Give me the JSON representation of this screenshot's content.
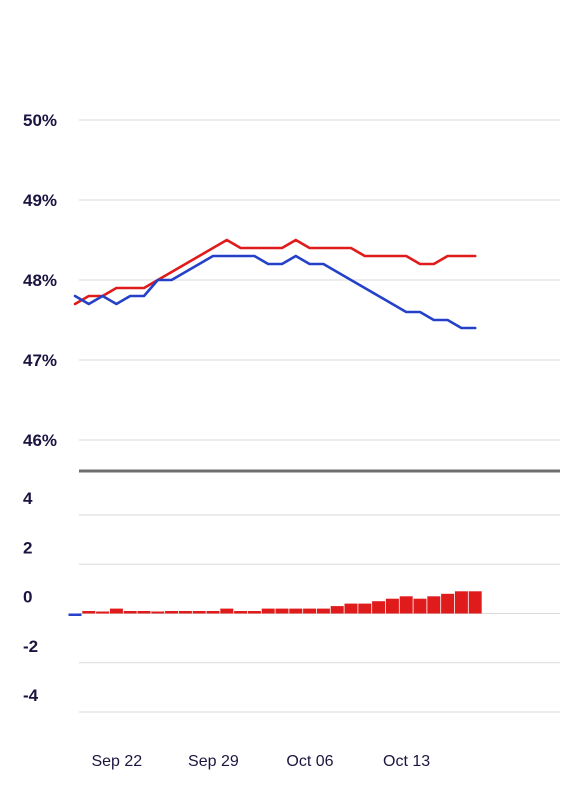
{
  "chart_data": [
    {
      "type": "line",
      "title": "",
      "xlabel": "",
      "ylabel": "",
      "ylim": [
        45.6,
        50
      ],
      "yticks": [
        "50%",
        "49%",
        "48%",
        "47%",
        "46%"
      ],
      "ytick_values": [
        50,
        49,
        48,
        47,
        46
      ],
      "x": [
        "Sep 21",
        "Sep 22",
        "Sep 23",
        "Sep 24",
        "Sep 25",
        "Sep 26",
        "Sep 27",
        "Sep 28",
        "Sep 29",
        "Sep 30",
        "Oct 01",
        "Oct 02",
        "Oct 03",
        "Oct 04",
        "Oct 05",
        "Oct 06",
        "Oct 07",
        "Oct 08",
        "Oct 09",
        "Oct 10",
        "Oct 11",
        "Oct 12",
        "Oct 13",
        "Oct 14",
        "Oct 15",
        "Oct 16",
        "Oct 17",
        "Oct 18",
        "Oct 19",
        "Oct 20"
      ],
      "xticks": [
        "Sep 22",
        "Sep 29",
        "Oct 06",
        "Oct 13"
      ],
      "series": [
        {
          "color": "#e01b1b",
          "values": [
            47.7,
            47.8,
            47.8,
            47.9,
            47.9,
            47.9,
            48.0,
            48.1,
            48.2,
            48.3,
            48.4,
            48.5,
            48.4,
            48.4,
            48.4,
            48.4,
            48.5,
            48.4,
            48.4,
            48.4,
            48.4,
            48.3,
            48.3,
            48.3,
            48.3,
            48.2,
            48.2,
            48.3,
            48.3,
            48.3
          ]
        },
        {
          "color": "#2541c8",
          "values": [
            47.8,
            47.7,
            47.8,
            47.7,
            47.8,
            47.8,
            48.0,
            48.0,
            48.1,
            48.2,
            48.3,
            48.3,
            48.3,
            48.3,
            48.2,
            48.2,
            48.3,
            48.2,
            48.2,
            48.1,
            48.0,
            47.9,
            47.8,
            47.7,
            47.6,
            47.6,
            47.5,
            47.5,
            47.4,
            47.4
          ]
        }
      ]
    },
    {
      "type": "bar",
      "title": "",
      "xlabel": "",
      "ylabel": "",
      "ylim": [
        -4,
        4
      ],
      "yticks": [
        "4",
        "2",
        "0",
        "-2",
        "-4"
      ],
      "ytick_values": [
        4,
        2,
        0,
        -2,
        -4
      ],
      "positive_color": "#e01b1b",
      "negative_color": "#2541c8",
      "x": [
        "Sep 21",
        "Sep 22",
        "Sep 23",
        "Sep 24",
        "Sep 25",
        "Sep 26",
        "Sep 27",
        "Sep 28",
        "Sep 29",
        "Sep 30",
        "Oct 01",
        "Oct 02",
        "Oct 03",
        "Oct 04",
        "Oct 05",
        "Oct 06",
        "Oct 07",
        "Oct 08",
        "Oct 09",
        "Oct 10",
        "Oct 11",
        "Oct 12",
        "Oct 13",
        "Oct 14",
        "Oct 15",
        "Oct 16",
        "Oct 17",
        "Oct 18",
        "Oct 19",
        "Oct 20"
      ],
      "values": [
        -0.1,
        0.1,
        0.0,
        0.2,
        0.1,
        0.1,
        0.0,
        0.1,
        0.1,
        0.1,
        0.1,
        0.2,
        0.1,
        0.1,
        0.2,
        0.2,
        0.2,
        0.2,
        0.2,
        0.3,
        0.4,
        0.4,
        0.5,
        0.6,
        0.7,
        0.6,
        0.7,
        0.8,
        0.9,
        0.9
      ],
      "xticks": [
        "Sep 22",
        "Sep 29",
        "Oct 06",
        "Oct 13"
      ]
    }
  ]
}
